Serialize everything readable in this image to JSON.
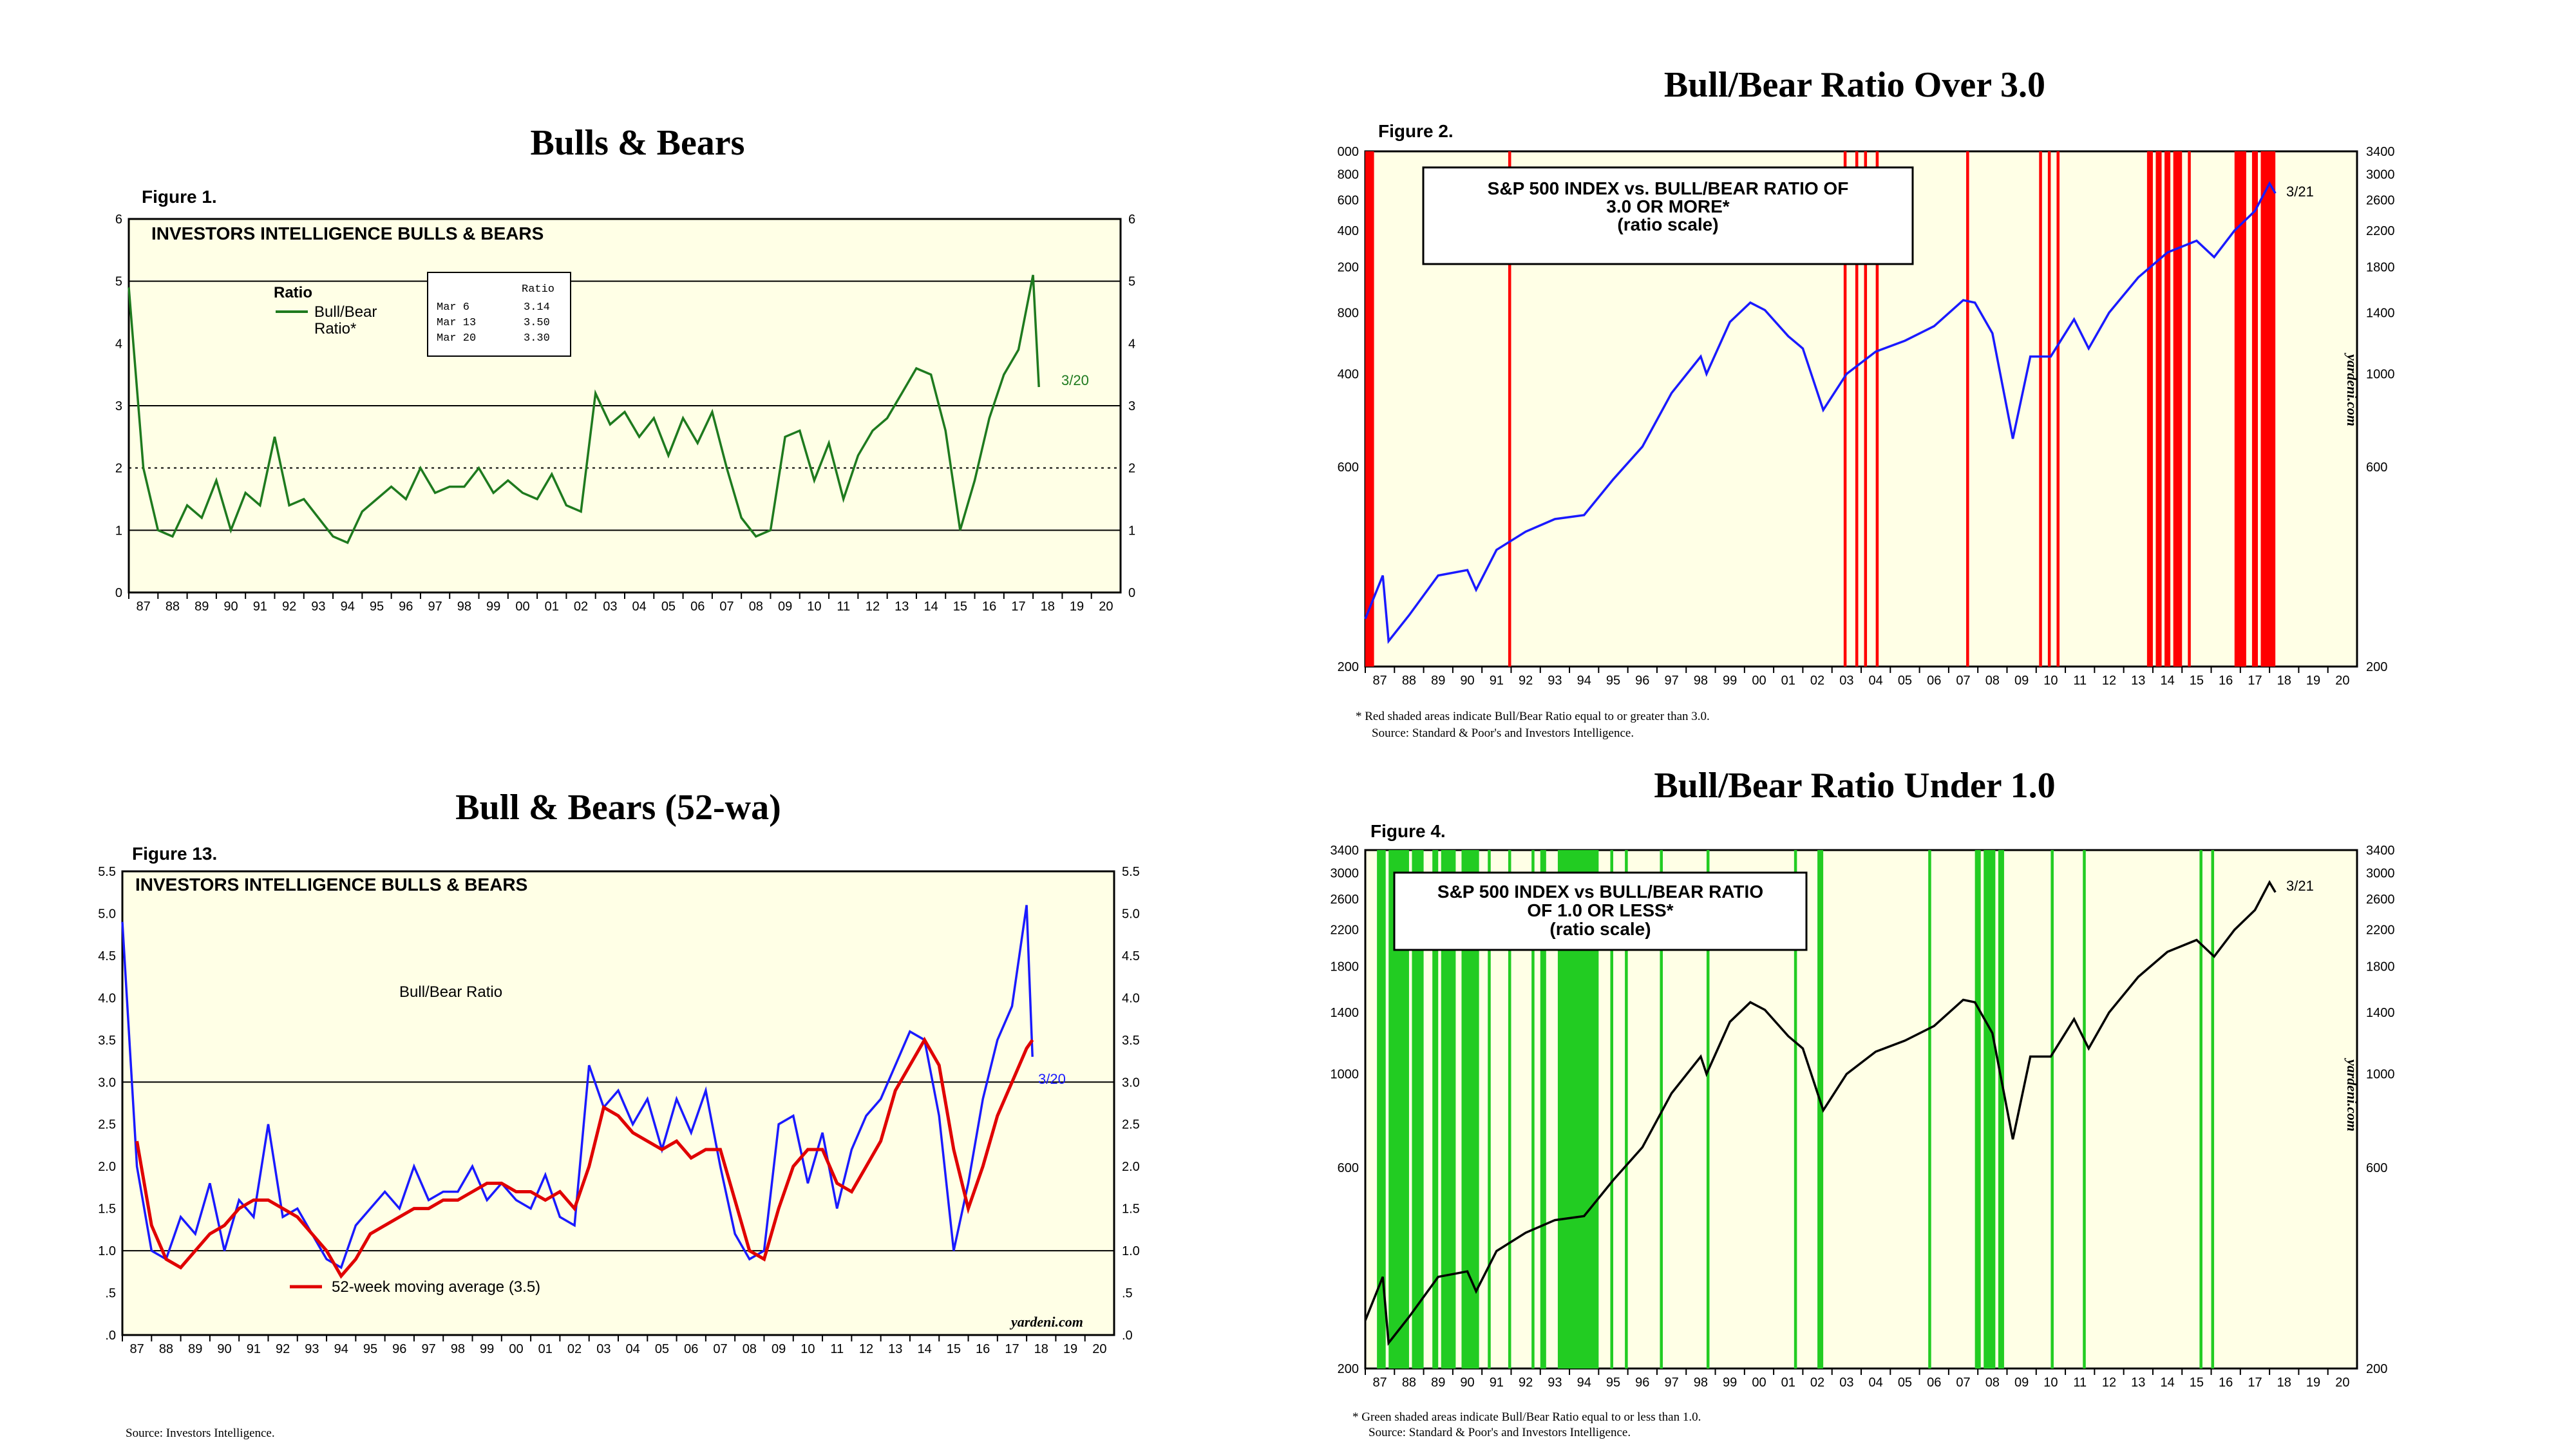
{
  "panels": {
    "p1": {
      "title": "Bulls & Bears",
      "figure": "Figure 1.",
      "box_title": "INVESTORS INTELLIGENCE BULLS & BEARS",
      "legend_head": "Ratio",
      "legend_line1": "Bull/Bear",
      "legend_line2": "Ratio*",
      "table_head": "Ratio",
      "table_rows": [
        [
          "Mar  6",
          "3.14"
        ],
        [
          "Mar 13",
          "3.50"
        ],
        [
          "Mar 20",
          "3.30"
        ]
      ],
      "end_label": "3/20"
    },
    "p2": {
      "title": "Bull/Bear Ratio Over 3.0",
      "figure": "Figure 2.",
      "box_line1": "S&P 500 INDEX vs. BULL/BEAR RATIO OF",
      "box_line2": "3.0 OR MORE*",
      "box_line3": "(ratio scale)",
      "end_label": "3/21",
      "watermark": "yardeni.com",
      "foot1": "*   Red shaded areas indicate Bull/Bear Ratio equal to or greater than 3.0.",
      "foot2": "Source: Standard & Poor's and Investors Intelligence."
    },
    "p3": {
      "title": "Bull & Bears (52-wa)",
      "figure": "Figure 13.",
      "box_title": "INVESTORS INTELLIGENCE BULLS & BEARS",
      "series_label": "Bull/Bear Ratio",
      "legend": "52-week moving average (3.5)",
      "end_label": "3/20",
      "watermark": "yardeni.com",
      "foot": "Source: Investors Intelligence."
    },
    "p4": {
      "title": "Bull/Bear Ratio Under 1.0",
      "figure": "Figure 4.",
      "box_line1": "S&P 500 INDEX vs BULL/BEAR RATIO",
      "box_line2": "OF 1.0 OR LESS*",
      "box_line3": "(ratio scale)",
      "end_label": "3/21",
      "watermark": "yardeni.com",
      "foot1": "*   Green shaded areas indicate Bull/Bear Ratio equal to or less than 1.0.",
      "foot2": "Source: Standard & Poor's and Investors Intelligence."
    }
  },
  "colors": {
    "ratio_green": "#1e7a1e",
    "sp_blue": "#1a1aff",
    "sp_black": "#000000",
    "ma_red": "#e00000",
    "shade_red": "#ff0000",
    "shade_green": "#22cc22",
    "plot_bg": "#ffffe6"
  },
  "chart_data": [
    {
      "type": "line",
      "title": "Bulls & Bears",
      "x_ticks": [
        "87",
        "88",
        "89",
        "90",
        "91",
        "92",
        "93",
        "94",
        "95",
        "96",
        "97",
        "98",
        "99",
        "00",
        "01",
        "02",
        "03",
        "04",
        "05",
        "06",
        "07",
        "08",
        "09",
        "10",
        "11",
        "12",
        "13",
        "14",
        "15",
        "16",
        "17",
        "18",
        "19",
        "20"
      ],
      "ylim": [
        0,
        6
      ],
      "y_ticks": [
        "0",
        "1",
        "2",
        "3",
        "4",
        "5",
        "6"
      ],
      "reference_lines": [
        1,
        3,
        5
      ],
      "dotted_line": 2,
      "series": [
        {
          "name": "Bull/Bear Ratio*",
          "x": [
            1987.0,
            1987.5,
            1988.0,
            1988.5,
            1989.0,
            1989.5,
            1990.0,
            1990.5,
            1991.0,
            1991.5,
            1992.0,
            1992.5,
            1993.0,
            1993.5,
            1994.0,
            1994.5,
            1995.0,
            1995.5,
            1996.0,
            1996.5,
            1997.0,
            1997.5,
            1998.0,
            1998.5,
            1999.0,
            1999.5,
            2000.0,
            2000.5,
            2001.0,
            2001.5,
            2002.0,
            2002.5,
            2003.0,
            2003.5,
            2004.0,
            2004.5,
            2005.0,
            2005.5,
            2006.0,
            2006.5,
            2007.0,
            2007.5,
            2008.0,
            2008.5,
            2009.0,
            2009.5,
            2010.0,
            2010.5,
            2011.0,
            2011.5,
            2012.0,
            2012.5,
            2013.0,
            2013.5,
            2014.0,
            2014.5,
            2015.0,
            2015.5,
            2016.0,
            2016.5,
            2017.0,
            2017.5,
            2018.0,
            2018.2
          ],
          "values": [
            4.9,
            2.0,
            1.0,
            0.9,
            1.4,
            1.2,
            1.8,
            1.0,
            1.6,
            1.4,
            2.5,
            1.4,
            1.5,
            1.2,
            0.9,
            0.8,
            1.3,
            1.5,
            1.7,
            1.5,
            2.0,
            1.6,
            1.7,
            1.7,
            2.0,
            1.6,
            1.8,
            1.6,
            1.5,
            1.9,
            1.4,
            1.3,
            3.2,
            2.7,
            2.9,
            2.5,
            2.8,
            2.2,
            2.8,
            2.4,
            2.9,
            2.0,
            1.2,
            0.9,
            1.0,
            2.5,
            2.6,
            1.8,
            2.4,
            1.5,
            2.2,
            2.6,
            2.8,
            3.2,
            3.6,
            3.5,
            2.6,
            1.0,
            1.8,
            2.8,
            3.5,
            3.9,
            5.1,
            3.3
          ]
        }
      ]
    },
    {
      "type": "line",
      "title": "Bull/Bear Ratio Over 3.0",
      "x_ticks": [
        "87",
        "88",
        "89",
        "90",
        "91",
        "92",
        "93",
        "94",
        "95",
        "96",
        "97",
        "98",
        "99",
        "00",
        "01",
        "02",
        "03",
        "04",
        "05",
        "06",
        "07",
        "08",
        "09",
        "10",
        "11",
        "12",
        "13",
        "14",
        "15",
        "16",
        "17",
        "18",
        "19",
        "20"
      ],
      "y_scale": "log",
      "left_y_ticks": [
        "200",
        "600",
        "400",
        "800",
        "200",
        "400",
        "600",
        "800",
        "000"
      ],
      "right_y_ticks": [
        "200",
        "600",
        "1000",
        "1400",
        "1800",
        "2200",
        "2600",
        "3000",
        "3400"
      ],
      "ylim": [
        200,
        3400
      ],
      "series": [
        {
          "name": "S&P 500 INDEX",
          "x": [
            1987.0,
            1987.6,
            1987.8,
            1988.5,
            1989.5,
            1990.5,
            1990.8,
            1991.5,
            1992.5,
            1993.5,
            1994.5,
            1995.5,
            1996.5,
            1997.5,
            1998.5,
            1998.7,
            1999.5,
            2000.2,
            2000.7,
            2001.5,
            2002.0,
            2002.7,
            2003.5,
            2004.5,
            2005.5,
            2006.5,
            2007.5,
            2007.9,
            2008.5,
            2009.2,
            2009.8,
            2010.5,
            2011.3,
            2011.8,
            2012.5,
            2013.5,
            2014.5,
            2015.5,
            2016.1,
            2016.8,
            2017.5,
            2018.0,
            2018.2
          ],
          "values": [
            260,
            330,
            230,
            265,
            330,
            340,
            305,
            380,
            420,
            450,
            460,
            560,
            670,
            900,
            1100,
            1000,
            1330,
            1480,
            1420,
            1230,
            1150,
            820,
            1000,
            1130,
            1200,
            1300,
            1500,
            1480,
            1250,
            700,
            1100,
            1100,
            1350,
            1150,
            1400,
            1700,
            1950,
            2080,
            1900,
            2200,
            2450,
            2850,
            2700
          ]
        }
      ],
      "shaded_periods_ratio_ge_3": [
        [
          1987.0,
          1987.3
        ],
        [
          1991.9,
          1992.0
        ],
        [
          2003.4,
          2003.5
        ],
        [
          2003.8,
          2003.9
        ],
        [
          2004.1,
          2004.2
        ],
        [
          2004.5,
          2004.6
        ],
        [
          2007.6,
          2007.7
        ],
        [
          2010.1,
          2010.2
        ],
        [
          2010.4,
          2010.5
        ],
        [
          2010.7,
          2010.8
        ],
        [
          2013.8,
          2014.0
        ],
        [
          2014.1,
          2014.3
        ],
        [
          2014.4,
          2014.6
        ],
        [
          2014.7,
          2015.0
        ],
        [
          2015.2,
          2015.3
        ],
        [
          2016.8,
          2017.2
        ],
        [
          2017.4,
          2017.6
        ],
        [
          2017.7,
          2018.2
        ]
      ]
    },
    {
      "type": "line",
      "title": "Bull & Bears (52-wa)",
      "x_ticks": [
        "87",
        "88",
        "89",
        "90",
        "91",
        "92",
        "93",
        "94",
        "95",
        "96",
        "97",
        "98",
        "99",
        "00",
        "01",
        "02",
        "03",
        "04",
        "05",
        "06",
        "07",
        "08",
        "09",
        "10",
        "11",
        "12",
        "13",
        "14",
        "15",
        "16",
        "17",
        "18",
        "19",
        "20"
      ],
      "ylim": [
        0,
        5.5
      ],
      "y_ticks": [
        ".0",
        ".5",
        "1.0",
        "1.5",
        "2.0",
        "2.5",
        "3.0",
        "3.5",
        "4.0",
        "4.5",
        "5.0",
        "5.5"
      ],
      "reference_lines": [
        1.0,
        3.0
      ],
      "series": [
        {
          "name": "Bull/Bear Ratio",
          "x": [
            1987.0,
            1987.5,
            1988.0,
            1988.5,
            1989.0,
            1989.5,
            1990.0,
            1990.5,
            1991.0,
            1991.5,
            1992.0,
            1992.5,
            1993.0,
            1993.5,
            1994.0,
            1994.5,
            1995.0,
            1995.5,
            1996.0,
            1996.5,
            1997.0,
            1997.5,
            1998.0,
            1998.5,
            1999.0,
            1999.5,
            2000.0,
            2000.5,
            2001.0,
            2001.5,
            2002.0,
            2002.5,
            2003.0,
            2003.5,
            2004.0,
            2004.5,
            2005.0,
            2005.5,
            2006.0,
            2006.5,
            2007.0,
            2007.5,
            2008.0,
            2008.5,
            2009.0,
            2009.5,
            2010.0,
            2010.5,
            2011.0,
            2011.5,
            2012.0,
            2012.5,
            2013.0,
            2013.5,
            2014.0,
            2014.5,
            2015.0,
            2015.5,
            2016.0,
            2016.5,
            2017.0,
            2017.5,
            2018.0,
            2018.2
          ],
          "values": [
            4.9,
            2.0,
            1.0,
            0.9,
            1.4,
            1.2,
            1.8,
            1.0,
            1.6,
            1.4,
            2.5,
            1.4,
            1.5,
            1.2,
            0.9,
            0.8,
            1.3,
            1.5,
            1.7,
            1.5,
            2.0,
            1.6,
            1.7,
            1.7,
            2.0,
            1.6,
            1.8,
            1.6,
            1.5,
            1.9,
            1.4,
            1.3,
            3.2,
            2.7,
            2.9,
            2.5,
            2.8,
            2.2,
            2.8,
            2.4,
            2.9,
            2.0,
            1.2,
            0.9,
            1.0,
            2.5,
            2.6,
            1.8,
            2.4,
            1.5,
            2.2,
            2.6,
            2.8,
            3.2,
            3.6,
            3.5,
            2.6,
            1.0,
            1.8,
            2.8,
            3.5,
            3.9,
            5.1,
            3.3
          ]
        },
        {
          "name": "52-week moving average (3.5)",
          "x": [
            1987.5,
            1988.0,
            1988.5,
            1989.0,
            1989.5,
            1990.0,
            1990.5,
            1991.0,
            1991.5,
            1992.0,
            1992.5,
            1993.0,
            1993.5,
            1994.0,
            1994.5,
            1995.0,
            1995.5,
            1996.0,
            1996.5,
            1997.0,
            1997.5,
            1998.0,
            1998.5,
            1999.0,
            1999.5,
            2000.0,
            2000.5,
            2001.0,
            2001.5,
            2002.0,
            2002.5,
            2003.0,
            2003.5,
            2004.0,
            2004.5,
            2005.0,
            2005.5,
            2006.0,
            2006.5,
            2007.0,
            2007.5,
            2008.0,
            2008.5,
            2009.0,
            2009.5,
            2010.0,
            2010.5,
            2011.0,
            2011.5,
            2012.0,
            2012.5,
            2013.0,
            2013.5,
            2014.0,
            2014.5,
            2015.0,
            2015.5,
            2016.0,
            2016.5,
            2017.0,
            2017.5,
            2018.0,
            2018.2
          ],
          "values": [
            2.3,
            1.3,
            0.9,
            0.8,
            1.0,
            1.2,
            1.3,
            1.5,
            1.6,
            1.6,
            1.5,
            1.4,
            1.2,
            1.0,
            0.7,
            0.9,
            1.2,
            1.3,
            1.4,
            1.5,
            1.5,
            1.6,
            1.6,
            1.7,
            1.8,
            1.8,
            1.7,
            1.7,
            1.6,
            1.7,
            1.5,
            2.0,
            2.7,
            2.6,
            2.4,
            2.3,
            2.2,
            2.3,
            2.1,
            2.2,
            2.2,
            1.6,
            1.0,
            0.9,
            1.5,
            2.0,
            2.2,
            2.2,
            1.8,
            1.7,
            2.0,
            2.3,
            2.9,
            3.2,
            3.5,
            3.2,
            2.2,
            1.5,
            2.0,
            2.6,
            3.0,
            3.4,
            3.5
          ]
        }
      ]
    },
    {
      "type": "line",
      "title": "Bull/Bear Ratio Under 1.0",
      "x_ticks": [
        "87",
        "88",
        "89",
        "90",
        "91",
        "92",
        "93",
        "94",
        "95",
        "96",
        "97",
        "98",
        "99",
        "00",
        "01",
        "02",
        "03",
        "04",
        "05",
        "06",
        "07",
        "08",
        "09",
        "10",
        "11",
        "12",
        "13",
        "14",
        "15",
        "16",
        "17",
        "18",
        "19",
        "20"
      ],
      "y_scale": "log",
      "left_y_ticks": [
        "200",
        "600",
        "1000",
        "1400",
        "1800",
        "2200",
        "2600",
        "3000",
        "3400"
      ],
      "right_y_ticks": [
        "200",
        "600",
        "1000",
        "1400",
        "1800",
        "2200",
        "2600",
        "3000",
        "3400"
      ],
      "ylim": [
        200,
        3400
      ],
      "series": [
        {
          "name": "S&P 500 INDEX",
          "x": [
            1987.0,
            1987.6,
            1987.8,
            1988.5,
            1989.5,
            1990.5,
            1990.8,
            1991.5,
            1992.5,
            1993.5,
            1994.5,
            1995.5,
            1996.5,
            1997.5,
            1998.5,
            1998.7,
            1999.5,
            2000.2,
            2000.7,
            2001.5,
            2002.0,
            2002.7,
            2003.5,
            2004.5,
            2005.5,
            2006.5,
            2007.5,
            2007.9,
            2008.5,
            2009.2,
            2009.8,
            2010.5,
            2011.3,
            2011.8,
            2012.5,
            2013.5,
            2014.5,
            2015.5,
            2016.1,
            2016.8,
            2017.5,
            2018.0,
            2018.2
          ],
          "values": [
            260,
            330,
            230,
            265,
            330,
            340,
            305,
            380,
            420,
            450,
            460,
            560,
            670,
            900,
            1100,
            1000,
            1330,
            1480,
            1420,
            1230,
            1150,
            820,
            1000,
            1130,
            1200,
            1300,
            1500,
            1480,
            1250,
            700,
            1100,
            1100,
            1350,
            1150,
            1400,
            1700,
            1950,
            2080,
            1900,
            2200,
            2450,
            2850,
            2700
          ]
        }
      ],
      "shaded_periods_ratio_le_1": [
        [
          1987.4,
          1987.7
        ],
        [
          1987.8,
          1988.5
        ],
        [
          1988.6,
          1989.0
        ],
        [
          1989.3,
          1989.5
        ],
        [
          1989.6,
          1990.1
        ],
        [
          1990.3,
          1990.9
        ],
        [
          1991.2,
          1991.3
        ],
        [
          1991.9,
          1992.0
        ],
        [
          1992.7,
          1992.8
        ],
        [
          1993.0,
          1993.2
        ],
        [
          1993.6,
          1995.0
        ],
        [
          1995.4,
          1995.5
        ],
        [
          1995.9,
          1996.0
        ],
        [
          1997.1,
          1997.2
        ],
        [
          1998.7,
          1998.8
        ],
        [
          2001.7,
          2001.8
        ],
        [
          2002.5,
          2002.7
        ],
        [
          2006.3,
          2006.4
        ],
        [
          2007.9,
          2008.1
        ],
        [
          2008.2,
          2008.6
        ],
        [
          2008.7,
          2008.9
        ],
        [
          2010.5,
          2010.6
        ],
        [
          2011.6,
          2011.7
        ],
        [
          2015.6,
          2015.7
        ],
        [
          2016.0,
          2016.1
        ]
      ]
    }
  ]
}
